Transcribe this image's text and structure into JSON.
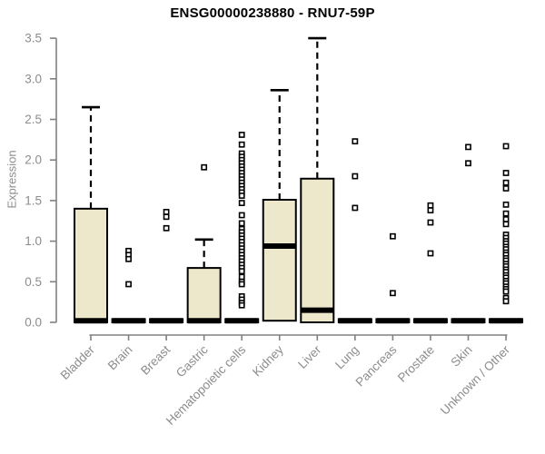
{
  "chart_data": {
    "type": "boxplot",
    "title": "ENSG00000238880 - RNU7-59P",
    "ylabel": "Expression",
    "xlabel": "",
    "ylim": [
      0,
      3.5
    ],
    "yticks": [
      "0.0",
      "0.5",
      "1.0",
      "1.5",
      "2.0",
      "2.5",
      "3.0",
      "3.5"
    ],
    "grid": false,
    "legend": "none",
    "colors": {
      "box_fill": "#EDE7CC",
      "box_border": "#000000",
      "median": "#000000",
      "whisker": "#000000",
      "outlier_stroke": "#000000",
      "axis": "#808080",
      "tick_text": "#8C8C8C",
      "title_text": "#000000"
    },
    "categories": [
      "Bladder",
      "Brain",
      "Breast",
      "Gastric",
      "Hematopoietic cells",
      "Kidney",
      "Liver",
      "Lung",
      "Pancreas",
      "Prostate",
      "Skin",
      "Unknown / Other"
    ],
    "boxes": [
      {
        "category": "Bladder",
        "q1": 0,
        "median": 0.02,
        "q3": 1.4,
        "whisker_low": 0,
        "whisker_high": 2.65,
        "outliers": []
      },
      {
        "category": "Brain",
        "q1": 0,
        "median": 0.02,
        "q3": 0.04,
        "whisker_low": 0,
        "whisker_high": 0.04,
        "outliers": [
          0.88,
          0.83,
          0.78,
          0.47
        ]
      },
      {
        "category": "Breast",
        "q1": 0,
        "median": 0.02,
        "q3": 0.04,
        "whisker_low": 0,
        "whisker_high": 0.04,
        "outliers": [
          1.36,
          1.3,
          1.16
        ]
      },
      {
        "category": "Gastric",
        "q1": 0,
        "median": 0.02,
        "q3": 0.67,
        "whisker_low": 0,
        "whisker_high": 1.02,
        "outliers": [
          1.91
        ]
      },
      {
        "category": "Hematopoietic cells",
        "q1": 0,
        "median": 0.02,
        "q3": 0.04,
        "whisker_low": 0,
        "whisker_high": 0.04,
        "outliers": [
          2.31,
          2.19,
          2.08,
          2.04,
          2.0,
          1.96,
          1.92,
          1.88,
          1.84,
          1.8,
          1.76,
          1.72,
          1.68,
          1.64,
          1.6,
          1.56,
          1.47,
          1.32,
          1.22,
          1.15,
          1.11,
          1.07,
          1.03,
          0.99,
          0.95,
          0.91,
          0.87,
          0.83,
          0.79,
          0.75,
          0.71,
          0.67,
          0.63,
          0.56,
          0.5,
          0.47,
          0.32,
          0.28,
          0.24,
          0.21
        ]
      },
      {
        "category": "Kidney",
        "q1": 0.02,
        "median": 0.94,
        "q3": 1.51,
        "whisker_low": 0.02,
        "whisker_high": 2.86,
        "outliers": []
      },
      {
        "category": "Liver",
        "q1": 0,
        "median": 0.15,
        "q3": 1.77,
        "whisker_low": 0,
        "whisker_high": 3.5,
        "outliers": []
      },
      {
        "category": "Lung",
        "q1": 0,
        "median": 0.02,
        "q3": 0.04,
        "whisker_low": 0,
        "whisker_high": 0.04,
        "outliers": [
          2.23,
          1.8,
          1.41
        ]
      },
      {
        "category": "Pancreas",
        "q1": 0,
        "median": 0.02,
        "q3": 0.04,
        "whisker_low": 0,
        "whisker_high": 0.04,
        "outliers": [
          1.06,
          0.36
        ]
      },
      {
        "category": "Prostate",
        "q1": 0,
        "median": 0.02,
        "q3": 0.04,
        "whisker_low": 0,
        "whisker_high": 0.04,
        "outliers": [
          1.44,
          1.38,
          1.23,
          0.85
        ]
      },
      {
        "category": "Skin",
        "q1": 0,
        "median": 0.02,
        "q3": 0.04,
        "whisker_low": 0,
        "whisker_high": 0.04,
        "outliers": [
          2.16,
          1.96
        ]
      },
      {
        "category": "Unknown / Other",
        "q1": 0,
        "median": 0.02,
        "q3": 0.04,
        "whisker_low": 0,
        "whisker_high": 0.04,
        "outliers": [
          2.17,
          1.84,
          1.72,
          1.65,
          1.45,
          1.34,
          1.27,
          1.21,
          1.08,
          1.04,
          1.0,
          0.97,
          0.93,
          0.9,
          0.86,
          0.83,
          0.79,
          0.76,
          0.72,
          0.69,
          0.65,
          0.62,
          0.58,
          0.55,
          0.51,
          0.48,
          0.44,
          0.41,
          0.38,
          0.3,
          0.26
        ]
      }
    ]
  }
}
